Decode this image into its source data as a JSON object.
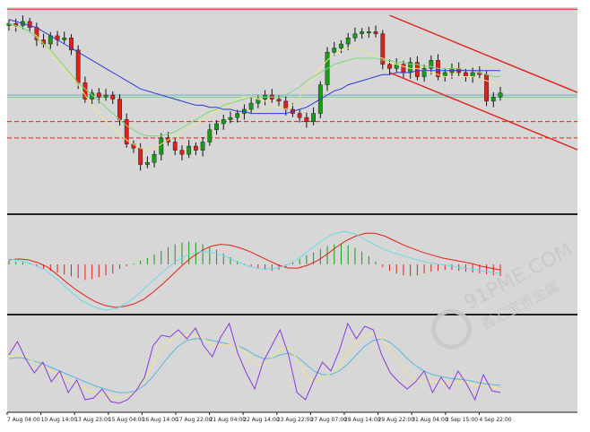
{
  "watermark": {
    "brand": "91PME.COM",
    "slogan": "鑫汇宝贵金属"
  },
  "colors": {
    "background": "#d7d7d7",
    "bull": "#1a9a1a",
    "bear": "#e0201a",
    "channel": "#e0201a",
    "ma_slow": "#2a3ad0",
    "ma_mid": "#7ad87a",
    "ma_fast": "#f0e68a",
    "macd_signal": "#e0201a",
    "macd_line": "#6fd8e8",
    "stoch_main": "#8a3ad8",
    "stoch_signal": "#f0e68a",
    "stoch_slow": "#5ab8d8",
    "divider": "#222222"
  },
  "chart_data": [
    {
      "type": "candlestick",
      "panel": "price",
      "x_tick_labels": [
        "7 Aug 04:00",
        "10 Aug 14:00",
        "13 Aug 23:00",
        "15 Aug 04:00",
        "16 Aug 14:00",
        "17 Aug 22:00",
        "21 Aug 04:00",
        "22 Aug 14:00",
        "23 Aug 22:00",
        "27 Aug 07:00",
        "28 Aug 14:00",
        "29 Aug 22:00",
        "31 Aug 04:00",
        "3 Sep 15:00",
        "4 Sep 22:00"
      ],
      "y_range": [
        0,
        100
      ],
      "closes": [
        92,
        91,
        93,
        90,
        84,
        82,
        86,
        84,
        85,
        79,
        63,
        55,
        58,
        56,
        57,
        55,
        45,
        33,
        31,
        23,
        24,
        28,
        36,
        34,
        30,
        28,
        32,
        30,
        34,
        40,
        43,
        45,
        46,
        48,
        50,
        53,
        55,
        57,
        55,
        54,
        50,
        48,
        46,
        44,
        48,
        62,
        78,
        80,
        82,
        85,
        87,
        88,
        88,
        87,
        72,
        70,
        72,
        68,
        73,
        66,
        70,
        74,
        66,
        68,
        70,
        68,
        66,
        68,
        67,
        54,
        56,
        58
      ],
      "ma_fast": [
        90,
        90,
        90,
        88,
        86,
        82,
        78,
        74,
        70,
        66,
        62,
        57,
        52,
        48,
        44,
        41,
        38,
        35,
        33,
        31,
        30,
        31,
        33,
        35,
        37,
        39,
        41,
        43,
        45,
        47,
        49,
        51,
        53,
        55,
        56,
        56,
        55,
        54,
        52,
        51,
        50,
        52,
        56,
        61,
        66,
        70,
        74,
        77,
        79,
        80,
        80,
        79,
        77,
        76,
        75,
        73,
        72,
        71,
        70,
        70,
        69,
        68,
        67,
        66,
        66,
        66,
        66,
        66,
        65,
        64,
        63,
        62
      ],
      "ma_mid": [
        92,
        91,
        90,
        88,
        85,
        82,
        79,
        75,
        71,
        67,
        63,
        60,
        57,
        54,
        51,
        48,
        45,
        42,
        40,
        38,
        37,
        37,
        37,
        38,
        39,
        41,
        43,
        45,
        47,
        49,
        50,
        52,
        53,
        54,
        55,
        56,
        56,
        56,
        56,
        56,
        57,
        59,
        61,
        64,
        66,
        68,
        70,
        72,
        73,
        74,
        75,
        75,
        75,
        75,
        74,
        74,
        73,
        73,
        72,
        72,
        71,
        71,
        70,
        70,
        70,
        70,
        69,
        69,
        68,
        67,
        66,
        66
      ],
      "ma_slow": [
        94,
        93,
        92,
        91,
        90,
        88,
        86,
        84,
        82,
        80,
        78,
        76,
        74,
        72,
        70,
        68,
        66,
        64,
        62,
        60,
        59,
        58,
        57,
        56,
        55,
        54,
        53,
        52,
        52,
        51,
        51,
        50,
        50,
        49,
        49,
        48,
        48,
        48,
        48,
        48,
        48,
        49,
        50,
        51,
        53,
        55,
        57,
        59,
        60,
        62,
        63,
        64,
        65,
        66,
        67,
        67,
        68,
        68,
        68,
        69,
        69,
        69,
        69,
        69,
        69,
        69,
        69,
        69,
        69,
        69,
        69,
        69
      ],
      "horizontal_levels": [
        {
          "y": 99,
          "style": "solid",
          "color": "#e0201a"
        },
        {
          "y": 57,
          "style": "solid",
          "color": "#7aa8c8"
        },
        {
          "y": 56,
          "style": "solid",
          "color": "#6fcf8f"
        },
        {
          "y": 44,
          "style": "dashed",
          "color": "#e0201a"
        },
        {
          "y": 36,
          "style": "dashed",
          "color": "#e0201a"
        }
      ],
      "trend_channel": {
        "upper": [
          {
            "i": 55,
            "y": 96
          },
          {
            "i": 78,
            "y": 64
          }
        ],
        "lower": [
          {
            "i": 55,
            "y": 68
          },
          {
            "i": 78,
            "y": 36
          }
        ]
      }
    },
    {
      "type": "histogram",
      "panel": "macd",
      "y_range": [
        -1,
        1
      ],
      "histogram": [
        0.08,
        0.06,
        0.05,
        0.02,
        -0.05,
        -0.1,
        -0.14,
        -0.18,
        -0.22,
        -0.26,
        -0.3,
        -0.34,
        -0.32,
        -0.28,
        -0.24,
        -0.2,
        -0.1,
        -0.04,
        0.02,
        0.08,
        0.14,
        0.22,
        0.3,
        0.38,
        0.44,
        0.48,
        0.5,
        0.48,
        0.44,
        0.38,
        0.32,
        0.24,
        0.16,
        0.08,
        0.02,
        -0.04,
        -0.08,
        -0.12,
        -0.14,
        -0.12,
        -0.06,
        0.04,
        0.12,
        0.2,
        0.26,
        0.34,
        0.4,
        0.44,
        0.46,
        0.42,
        0.36,
        0.28,
        0.18,
        0.06,
        -0.06,
        -0.14,
        -0.2,
        -0.24,
        -0.26,
        -0.24,
        -0.2,
        -0.16,
        -0.14,
        -0.12,
        -0.12,
        -0.14,
        -0.16,
        -0.18,
        -0.2,
        -0.22,
        -0.24,
        -0.26
      ],
      "signal": [
        0.1,
        0.12,
        0.1,
        0.04,
        -0.06,
        -0.22,
        -0.4,
        -0.56,
        -0.7,
        -0.82,
        -0.9,
        -0.94,
        -0.92,
        -0.86,
        -0.76,
        -0.6,
        -0.42,
        -0.22,
        -0.02,
        0.16,
        0.3,
        0.4,
        0.44,
        0.42,
        0.36,
        0.28,
        0.18,
        0.08,
        -0.02,
        -0.08,
        -0.08,
        -0.02,
        0.08,
        0.22,
        0.38,
        0.52,
        0.62,
        0.68,
        0.68,
        0.62,
        0.52,
        0.42,
        0.34,
        0.26,
        0.2,
        0.14,
        0.1,
        0.06,
        0.02,
        -0.04,
        -0.08,
        -0.12
      ],
      "macd_line": [
        0.12,
        0.08,
        0.0,
        -0.12,
        -0.32,
        -0.56,
        -0.78,
        -0.92,
        -1.0,
        -0.96,
        -0.82,
        -0.6,
        -0.36,
        -0.12,
        0.08,
        0.22,
        0.28,
        0.26,
        0.18,
        0.06,
        -0.04,
        -0.1,
        -0.1,
        -0.04,
        0.1,
        0.3,
        0.5,
        0.66,
        0.72,
        0.66,
        0.5,
        0.36,
        0.26,
        0.18,
        0.1,
        0.04,
        0.0,
        -0.04,
        -0.08,
        -0.12,
        -0.16,
        -0.2
      ]
    },
    {
      "type": "line",
      "panel": "stochastic",
      "y_range": [
        0,
        100
      ],
      "main": [
        60,
        75,
        55,
        40,
        52,
        30,
        42,
        18,
        32,
        10,
        12,
        22,
        8,
        6,
        10,
        20,
        35,
        70,
        82,
        80,
        88,
        78,
        90,
        70,
        58,
        80,
        95,
        62,
        40,
        22,
        52,
        70,
        88,
        60,
        18,
        10,
        32,
        52,
        42,
        65,
        95,
        78,
        92,
        88,
        60,
        40,
        30,
        22,
        30,
        42,
        18,
        35,
        22,
        42,
        28,
        10,
        38,
        20,
        18
      ],
      "signal": [
        58,
        60,
        58,
        52,
        48,
        42,
        38,
        32,
        28,
        22,
        18,
        16,
        14,
        12,
        14,
        20,
        32,
        50,
        66,
        76,
        82,
        82,
        82,
        78,
        72,
        70,
        72,
        70,
        62,
        50,
        48,
        56,
        66,
        68,
        56,
        38,
        30,
        34,
        40,
        48,
        62,
        74,
        82,
        84,
        78,
        66,
        52,
        40,
        32,
        30,
        30,
        30,
        28,
        30,
        30,
        26,
        26,
        24,
        22
      ],
      "slow": [
        56,
        57,
        56,
        53,
        50,
        46,
        42,
        38,
        34,
        30,
        26,
        23,
        20,
        18,
        18,
        20,
        26,
        36,
        48,
        60,
        70,
        76,
        78,
        78,
        76,
        74,
        72,
        70,
        66,
        60,
        56,
        56,
        60,
        62,
        58,
        50,
        42,
        38,
        38,
        42,
        50,
        60,
        70,
        76,
        78,
        74,
        66,
        56,
        48,
        42,
        38,
        36,
        34,
        33,
        32,
        30,
        28,
        27,
        26
      ]
    }
  ]
}
